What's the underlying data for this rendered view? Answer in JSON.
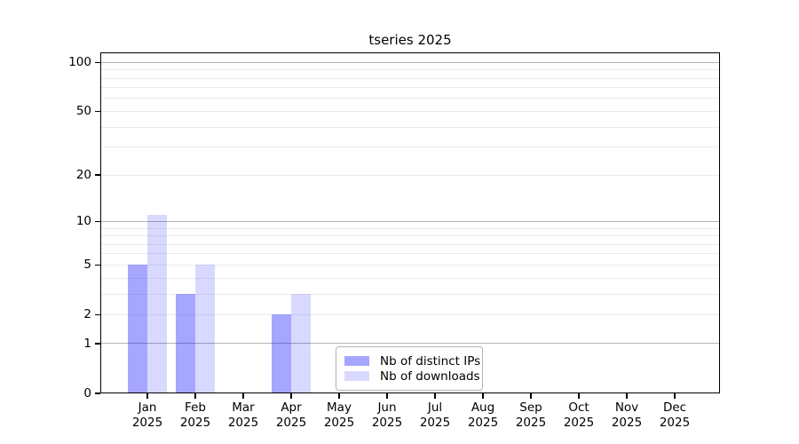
{
  "title": "tseries 2025",
  "chart_data": {
    "type": "bar",
    "title": "tseries 2025",
    "categories": [
      "Jan",
      "Feb",
      "Mar",
      "Apr",
      "May",
      "Jun",
      "Jul",
      "Aug",
      "Sep",
      "Oct",
      "Nov",
      "Dec"
    ],
    "year_label": "2025",
    "series": [
      {
        "name": "Nb of distinct IPs",
        "color": "rgba(0,0,255,0.35)",
        "values": [
          5,
          3,
          0,
          2,
          0,
          0,
          0,
          0,
          0,
          0,
          0,
          0
        ]
      },
      {
        "name": "Nb of downloads",
        "color": "rgba(0,0,255,0.15)",
        "values": [
          11,
          5,
          0,
          3,
          0,
          0,
          0,
          0,
          0,
          0,
          0,
          0
        ]
      }
    ],
    "yscale": "log1p",
    "ylim": [
      0,
      115
    ],
    "yticks": [
      0,
      1,
      2,
      5,
      10,
      20,
      50,
      100
    ],
    "grid": true,
    "grid_major": [
      1,
      10,
      100
    ],
    "grid_minor": [
      2,
      3,
      4,
      5,
      6,
      7,
      8,
      9,
      20,
      30,
      40,
      50,
      60,
      70,
      80,
      90
    ],
    "legend_position": "lower center",
    "colors": {
      "background": "#ffffff",
      "axis": "#000000",
      "grid_major": "#b4b4b4",
      "grid_minor": "#ebebeb",
      "bar_distinct_ips": "rgba(0,0,255,0.35)",
      "bar_downloads": "rgba(0,0,255,0.15)"
    }
  }
}
